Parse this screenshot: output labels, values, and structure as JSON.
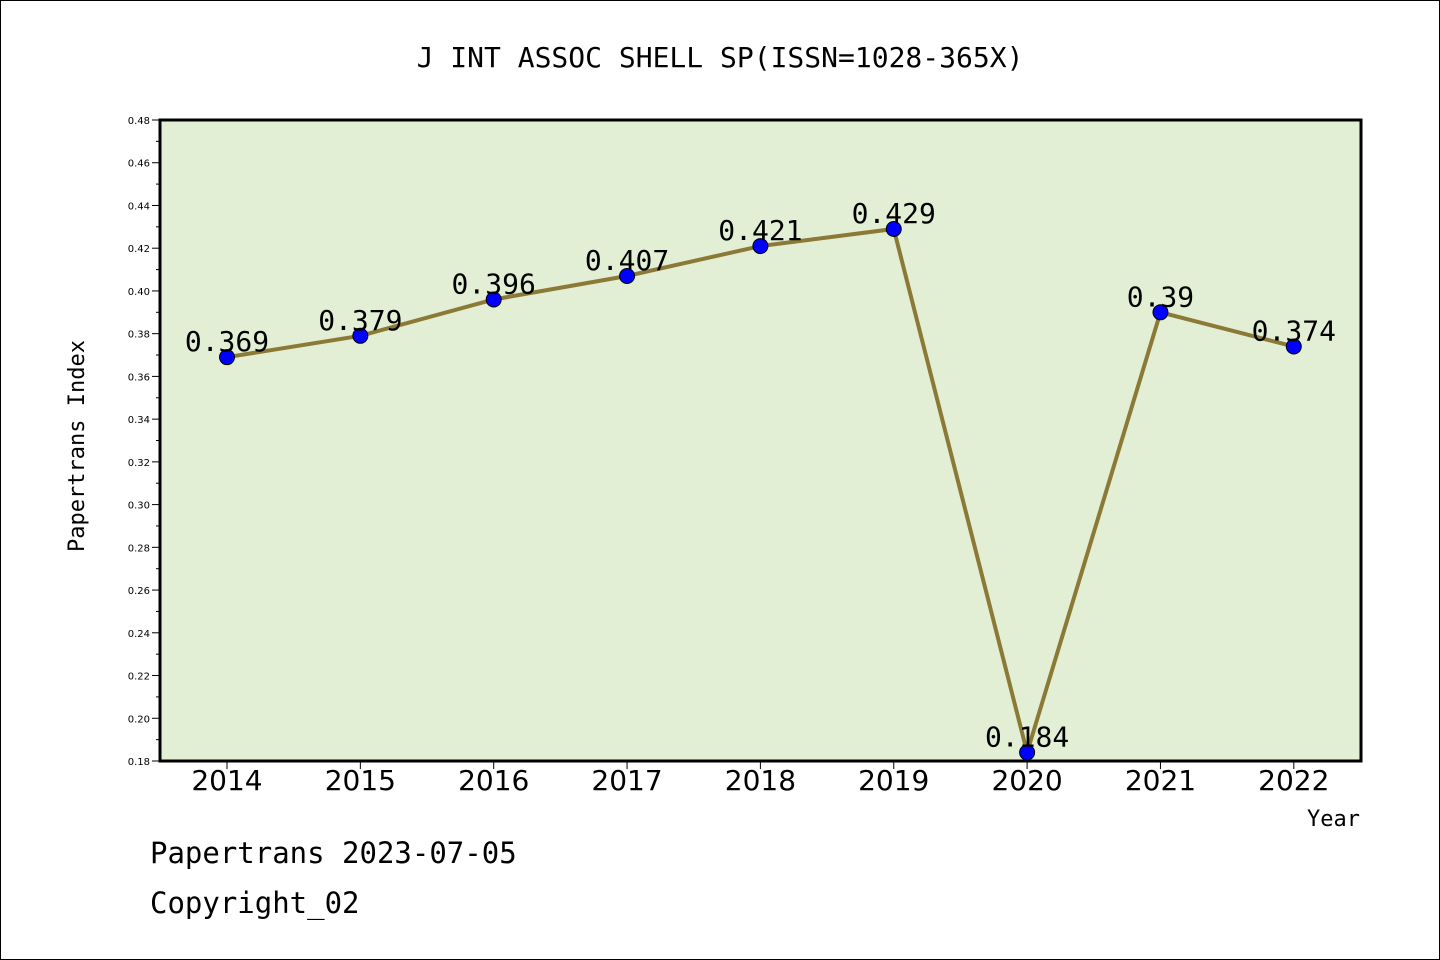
{
  "chart_data": {
    "type": "line",
    "title": "J INT ASSOC SHELL SP(ISSN=1028-365X)",
    "xlabel": "Year",
    "ylabel": "Papertrans Index",
    "categories": [
      "2014",
      "2015",
      "2016",
      "2017",
      "2018",
      "2019",
      "2020",
      "2021",
      "2022"
    ],
    "series": [
      {
        "values": [
          0.369,
          0.379,
          0.396,
          0.407,
          0.421,
          0.429,
          0.184,
          0.39,
          0.374
        ],
        "data_labels": [
          "0.369",
          "0.379",
          "0.396",
          "0.407",
          "0.421",
          "0.429",
          "0.184",
          "0.39",
          "0.374"
        ]
      }
    ],
    "ylim": [
      0.18,
      0.48
    ],
    "yticks": [
      "0.18",
      "0.20",
      "0.22",
      "0.24",
      "0.26",
      "0.28",
      "0.30",
      "0.32",
      "0.34",
      "0.36",
      "0.38",
      "0.40",
      "0.42",
      "0.44",
      "0.46",
      "0.48"
    ],
    "grid": false,
    "legend": "none",
    "colors": {
      "plot_background": "#e2efd5",
      "line": "#8b7a36",
      "marker": "#0000ff",
      "axis": "#000000"
    }
  },
  "footer": {
    "source": "Papertrans 2023-07-05",
    "copyright": "Copyright_02"
  }
}
